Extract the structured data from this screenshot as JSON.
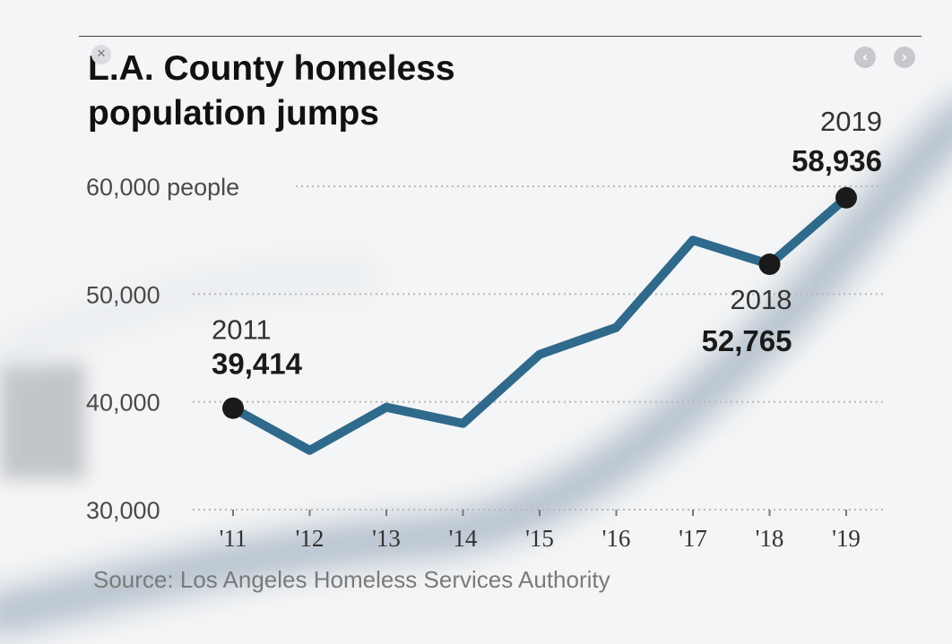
{
  "close_icon_glyph": "✕",
  "nav": {
    "prev_icon": "chevron-left-icon",
    "next_icon": "chevron-right-icon",
    "prev_glyph": "‹",
    "next_glyph": "›"
  },
  "colors": {
    "line": "#2f6a8c",
    "marker": "#1a1a1a",
    "grid": "#b8b8b8"
  },
  "chart_data": {
    "type": "line",
    "title": "L.A. County homeless population jumps",
    "title_lines": [
      "L.A. County homeless",
      "population jumps"
    ],
    "source": "Source: Los Angeles Homeless Services Authority",
    "x": [
      "'11",
      "'12",
      "'13",
      "'14",
      "'15",
      "'16",
      "'17",
      "'18",
      "'19"
    ],
    "series": [
      {
        "values": [
          39414,
          35500,
          39500,
          38000,
          44400,
          46900,
          55000,
          52765,
          58936
        ]
      }
    ],
    "ylim": [
      30000,
      60000
    ],
    "yticks": [
      30000,
      40000,
      50000,
      60000
    ],
    "ytick_labels": [
      "30,000",
      "40,000",
      "50,000",
      "60,000 people"
    ],
    "grid": true,
    "legend": "none",
    "annotations": [
      {
        "x": "'11",
        "year": "2011",
        "value_label": "39,414",
        "value": 39414
      },
      {
        "x": "'18",
        "year": "2018",
        "value_label": "52,765",
        "value": 52765
      },
      {
        "x": "'19",
        "year": "2019",
        "value_label": "58,936",
        "value": 58936
      }
    ]
  }
}
